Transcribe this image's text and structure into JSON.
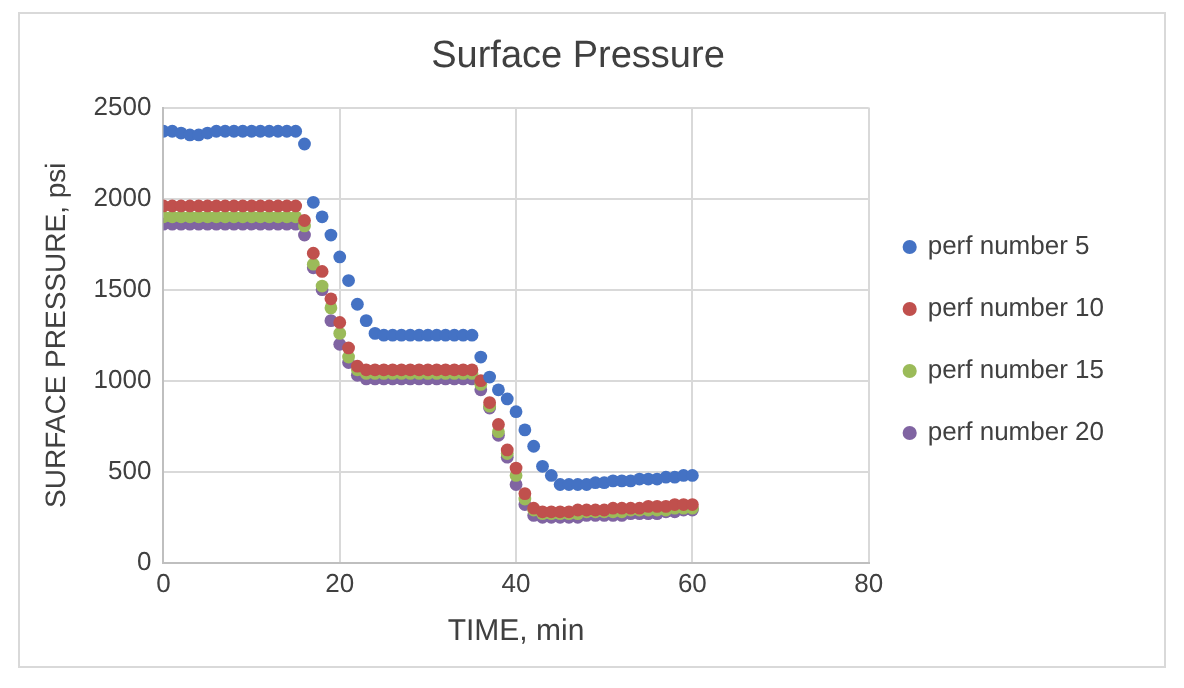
{
  "chart_data": {
    "type": "scatter",
    "title": "Surface Pressure",
    "xlabel": "TIME, min",
    "ylabel": "SURFACE PRESSURE, psi",
    "x": [
      0,
      1,
      2,
      3,
      4,
      5,
      6,
      7,
      8,
      9,
      10,
      11,
      12,
      13,
      14,
      15,
      16,
      17,
      18,
      19,
      20,
      21,
      22,
      23,
      24,
      25,
      26,
      27,
      28,
      29,
      30,
      31,
      32,
      33,
      34,
      35,
      36,
      37,
      38,
      39,
      40,
      41,
      42,
      43,
      44,
      45,
      46,
      47,
      48,
      49,
      50,
      51,
      52,
      53,
      54,
      55,
      56,
      57,
      58,
      59,
      60
    ],
    "series": [
      {
        "name": "perf number 5",
        "color": "#4472c4",
        "values": [
          2370,
          2370,
          2360,
          2350,
          2350,
          2360,
          2370,
          2370,
          2370,
          2370,
          2370,
          2370,
          2370,
          2370,
          2370,
          2370,
          2300,
          1980,
          1900,
          1800,
          1680,
          1550,
          1420,
          1330,
          1260,
          1250,
          1250,
          1250,
          1250,
          1250,
          1250,
          1250,
          1250,
          1250,
          1250,
          1250,
          1130,
          1020,
          950,
          900,
          830,
          730,
          640,
          530,
          480,
          430,
          430,
          430,
          430,
          440,
          440,
          450,
          450,
          450,
          460,
          460,
          460,
          470,
          470,
          480,
          480
        ]
      },
      {
        "name": "perf number 10",
        "color": "#c0504d",
        "values": [
          1960,
          1960,
          1960,
          1960,
          1960,
          1960,
          1960,
          1960,
          1960,
          1960,
          1960,
          1960,
          1960,
          1960,
          1960,
          1960,
          1880,
          1700,
          1600,
          1450,
          1320,
          1180,
          1080,
          1060,
          1060,
          1060,
          1060,
          1060,
          1060,
          1060,
          1060,
          1060,
          1060,
          1060,
          1060,
          1060,
          1000,
          880,
          760,
          620,
          520,
          380,
          300,
          280,
          280,
          280,
          280,
          290,
          290,
          290,
          290,
          300,
          300,
          300,
          300,
          310,
          310,
          310,
          320,
          320,
          320
        ]
      },
      {
        "name": "perf number 15",
        "color": "#9bbb59",
        "values": [
          1900,
          1900,
          1900,
          1900,
          1900,
          1900,
          1900,
          1900,
          1900,
          1900,
          1900,
          1900,
          1900,
          1900,
          1900,
          1900,
          1850,
          1640,
          1520,
          1400,
          1260,
          1130,
          1060,
          1040,
          1040,
          1040,
          1040,
          1040,
          1040,
          1040,
          1040,
          1040,
          1040,
          1040,
          1040,
          1040,
          980,
          860,
          720,
          600,
          480,
          350,
          290,
          270,
          270,
          270,
          270,
          270,
          280,
          280,
          280,
          280,
          280,
          290,
          290,
          290,
          290,
          290,
          300,
          300,
          300
        ]
      },
      {
        "name": "perf number 20",
        "color": "#8064a2",
        "values": [
          1860,
          1860,
          1860,
          1860,
          1860,
          1860,
          1860,
          1860,
          1860,
          1860,
          1860,
          1860,
          1860,
          1860,
          1860,
          1860,
          1800,
          1620,
          1500,
          1330,
          1200,
          1100,
          1030,
          1010,
          1010,
          1010,
          1010,
          1010,
          1010,
          1010,
          1010,
          1010,
          1010,
          1010,
          1010,
          1010,
          950,
          850,
          700,
          580,
          430,
          320,
          260,
          250,
          250,
          250,
          250,
          250,
          260,
          260,
          260,
          260,
          260,
          270,
          270,
          270,
          270,
          280,
          280,
          290,
          290
        ]
      }
    ],
    "xlim": [
      0,
      80
    ],
    "xticks": [
      0,
      20,
      40,
      60,
      80
    ],
    "ylim": [
      0,
      2500
    ],
    "yticks": [
      0,
      500,
      1000,
      1500,
      2000,
      2500
    ],
    "grid": true,
    "legend": "right",
    "marker": "circle"
  }
}
